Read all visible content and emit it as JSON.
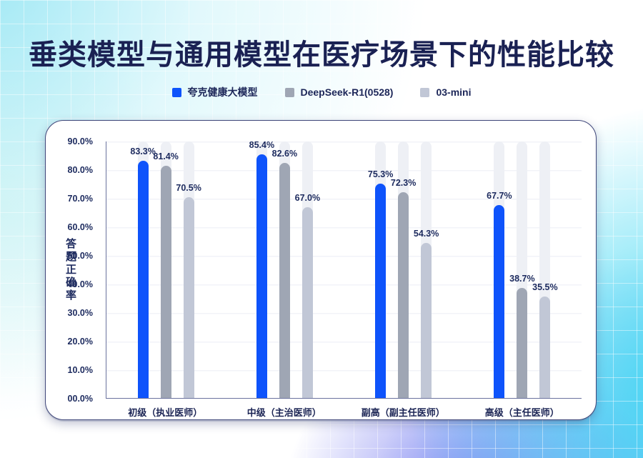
{
  "page": {
    "title": "垂类模型与通用模型在医疗场景下的性能比较"
  },
  "colors": {
    "title_navy": "#1A2153",
    "axis_line": "#6B729E",
    "track": "#EEF0F5",
    "background_cyan": "#38D6F2",
    "background_purple": "#7A7EF0"
  },
  "chart_data": {
    "type": "bar",
    "title": "垂类模型与通用模型在医疗场景下的性能比较",
    "xlabel": "",
    "ylabel": "答题正确率",
    "ylim": [
      0,
      90
    ],
    "grid": true,
    "legend_position": "top",
    "yticks": [
      "90.0%",
      "80.0%",
      "70.0%",
      "60.0%",
      "50.0%",
      "40.0%",
      "30.0%",
      "20.0%",
      "10.0%",
      "00.0%"
    ],
    "categories": [
      "初级（执业医师）",
      "中级（主治医师）",
      "副高（副主任医师）",
      "高级（主任医师）"
    ],
    "series": [
      {
        "name": "夸克健康大模型",
        "color": "#0E53FB",
        "values": [
          83.3,
          85.4,
          75.3,
          67.7
        ],
        "value_labels": [
          "83.3%",
          "85.4%",
          "75.3%",
          "67.7%"
        ]
      },
      {
        "name": "DeepSeek-R1(0528)",
        "color": "#9FA6B4",
        "values": [
          81.4,
          82.6,
          72.3,
          38.7
        ],
        "value_labels": [
          "81.4%",
          "82.6%",
          "72.3%",
          "38.7%"
        ]
      },
      {
        "name": "03-mini",
        "color": "#C1C7D6",
        "values": [
          70.5,
          67.0,
          54.3,
          35.5
        ],
        "value_labels": [
          "70.5%",
          "67.0%",
          "54.3%",
          "35.5%"
        ]
      }
    ]
  }
}
